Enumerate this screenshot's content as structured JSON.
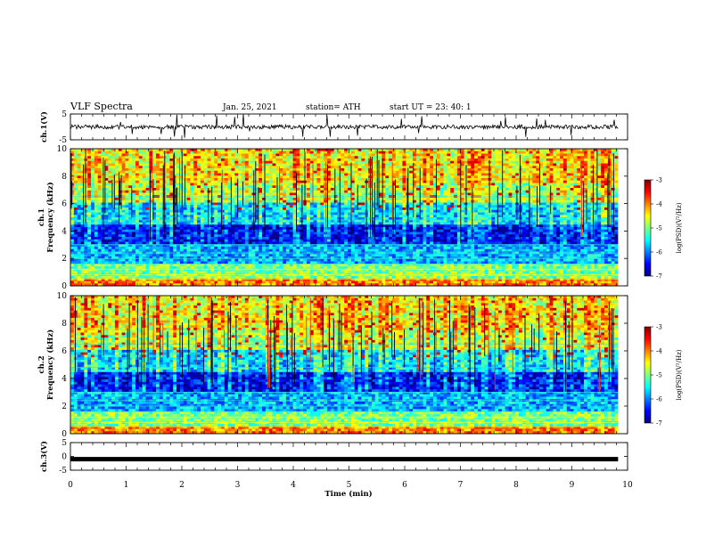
{
  "header": {
    "title": "VLF Spectra",
    "date": "Jan. 25, 2021",
    "station": "station= ATH",
    "start": "start  UT =   23: 40: 1"
  },
  "colors": {
    "spectro_lo": "#00007f",
    "spectro_hi": "#7f0000",
    "trace": "#000000"
  },
  "chart_data": [
    {
      "type": "line",
      "name": "ch1-waveform",
      "ylabel": "ch.1(V)",
      "ylim": [
        -5,
        5
      ],
      "yticks": [
        -5,
        5
      ],
      "ytick_labels": [
        "-5",
        "5"
      ],
      "xlim": [
        0,
        10
      ],
      "typical_level": 0
    },
    {
      "type": "heatmap",
      "name": "ch1-spectrogram",
      "ylabel_line1": "ch.1",
      "ylabel_line2": "Frequency (kHz)",
      "ylim": [
        0,
        10
      ],
      "yticks": [
        0,
        2,
        4,
        6,
        8,
        10
      ],
      "ytick_labels": [
        "0",
        "2",
        "4",
        "6",
        "8",
        "10"
      ],
      "xlim": [
        0,
        10
      ],
      "colorbar": {
        "label": "log(PSD)(V²/Hz)",
        "range": [
          -7,
          -3
        ],
        "ticks": [
          -7,
          -6,
          -5,
          -4,
          -3
        ],
        "tick_labels": [
          "-7",
          "-6",
          "-5",
          "-4",
          "-3"
        ]
      }
    },
    {
      "type": "heatmap",
      "name": "ch2-spectrogram",
      "ylabel_line1": "ch.2",
      "ylabel_line2": "Frequency (kHz)",
      "ylim": [
        0,
        10
      ],
      "yticks": [
        0,
        2,
        4,
        6,
        8,
        10
      ],
      "ytick_labels": [
        "0",
        "2",
        "4",
        "6",
        "8",
        "10"
      ],
      "xlim": [
        0,
        10
      ],
      "colorbar": {
        "label": "log(PSD)(V²/Hz)",
        "range": [
          -7,
          -3
        ],
        "ticks": [
          -7,
          -6,
          -5,
          -4,
          -3
        ],
        "tick_labels": [
          "-7",
          "-6",
          "-5",
          "-4",
          "-3"
        ]
      }
    },
    {
      "type": "line",
      "name": "ch3-waveform",
      "ylabel": "ch.3(V)",
      "ylim": [
        -5,
        5
      ],
      "yticks": [
        -5,
        0,
        5
      ],
      "ytick_labels": [
        "-5",
        "0",
        "5"
      ],
      "xlim": [
        0,
        10
      ],
      "typical_level": -1.0
    }
  ],
  "xaxis": {
    "label": "Time (min)",
    "ticks": [
      0,
      1,
      2,
      3,
      4,
      5,
      6,
      7,
      8,
      9,
      10
    ],
    "tick_labels": [
      "0",
      "1",
      "2",
      "3",
      "4",
      "5",
      "6",
      "7",
      "8",
      "9",
      "10"
    ],
    "data_end": 9.83
  }
}
